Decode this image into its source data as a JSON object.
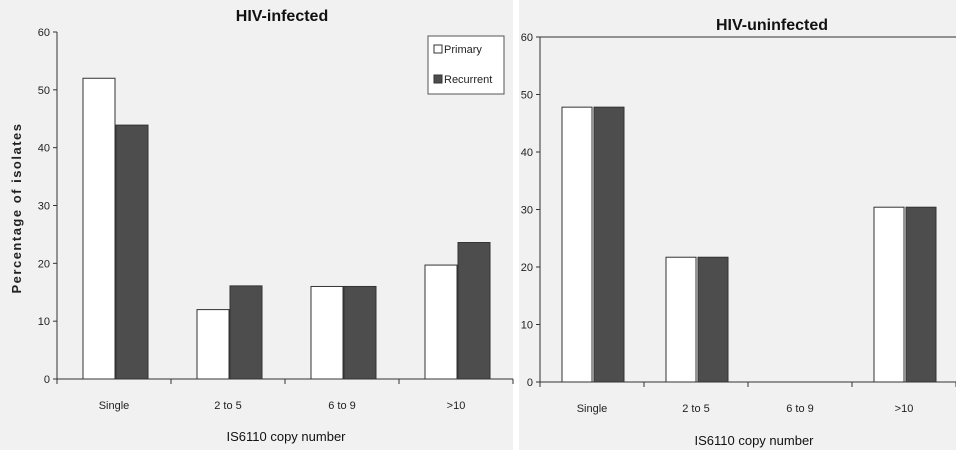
{
  "chart_data": [
    {
      "type": "bar",
      "title": "HIV-infected",
      "xlabel": "IS6110 copy number",
      "ylabel": "Percentage of isolates",
      "ylim": [
        0,
        60
      ],
      "yticks": [
        0,
        10,
        20,
        30,
        40,
        50,
        60
      ],
      "categories": [
        "Single",
        "2 to 5",
        "6 to 9",
        ">10"
      ],
      "legend_position": "top-right",
      "series": [
        {
          "name": "Primary",
          "color": "#ffffff",
          "values": [
            52,
            12,
            16,
            19.7
          ]
        },
        {
          "name": "Recurrent",
          "color": "#4d4d4d",
          "values": [
            43.9,
            16.1,
            16,
            23.6
          ]
        }
      ]
    },
    {
      "type": "bar",
      "title": "HIV-uninfected",
      "xlabel": "IS6110 copy number",
      "ylabel": "",
      "ylim": [
        0,
        60
      ],
      "yticks": [
        0,
        10,
        20,
        30,
        40,
        50,
        60
      ],
      "categories": [
        "Single",
        "2 to 5",
        "6 to 9",
        ">10"
      ],
      "series": [
        {
          "values": [
            47.8,
            21.7,
            0,
            30.4
          ],
          "color": "#ffffff"
        },
        {
          "values": [
            47.8,
            21.7,
            0,
            30.4
          ],
          "color": "#4d4d4d"
        }
      ]
    }
  ]
}
